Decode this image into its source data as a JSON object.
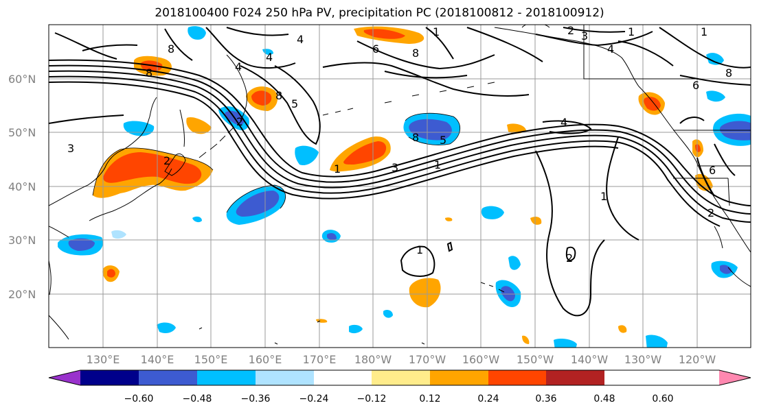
{
  "title": "2018100400 F024 250 hPa PV, precipitation PC (2018100812 - 2018100912)",
  "lat_labels": [
    "60°N",
    "50°N",
    "40°N",
    "30°N",
    "20°N"
  ],
  "lon_labels": [
    "130°E",
    "140°E",
    "150°E",
    "160°E",
    "170°E",
    "180°W",
    "170°W",
    "160°W",
    "150°W",
    "140°W",
    "130°W",
    "120°W"
  ],
  "colorbar": {
    "tick_labels": [
      "−0.60",
      "−0.48",
      "−0.36",
      "−0.24",
      "−0.12",
      "0.12",
      "0.24",
      "0.36",
      "0.48",
      "0.60"
    ],
    "colors": [
      "#9932cc",
      "#00008b",
      "#3d5bd1",
      "#00bfff",
      "#afe3ff",
      "#ffffff",
      "#ffec8b",
      "#ffa500",
      "#ff4500",
      "#b22222",
      "#ff88b0"
    ]
  },
  "pv_contour_labels": [
    "1",
    "2",
    "3",
    "4",
    "5",
    "6",
    "8"
  ]
}
